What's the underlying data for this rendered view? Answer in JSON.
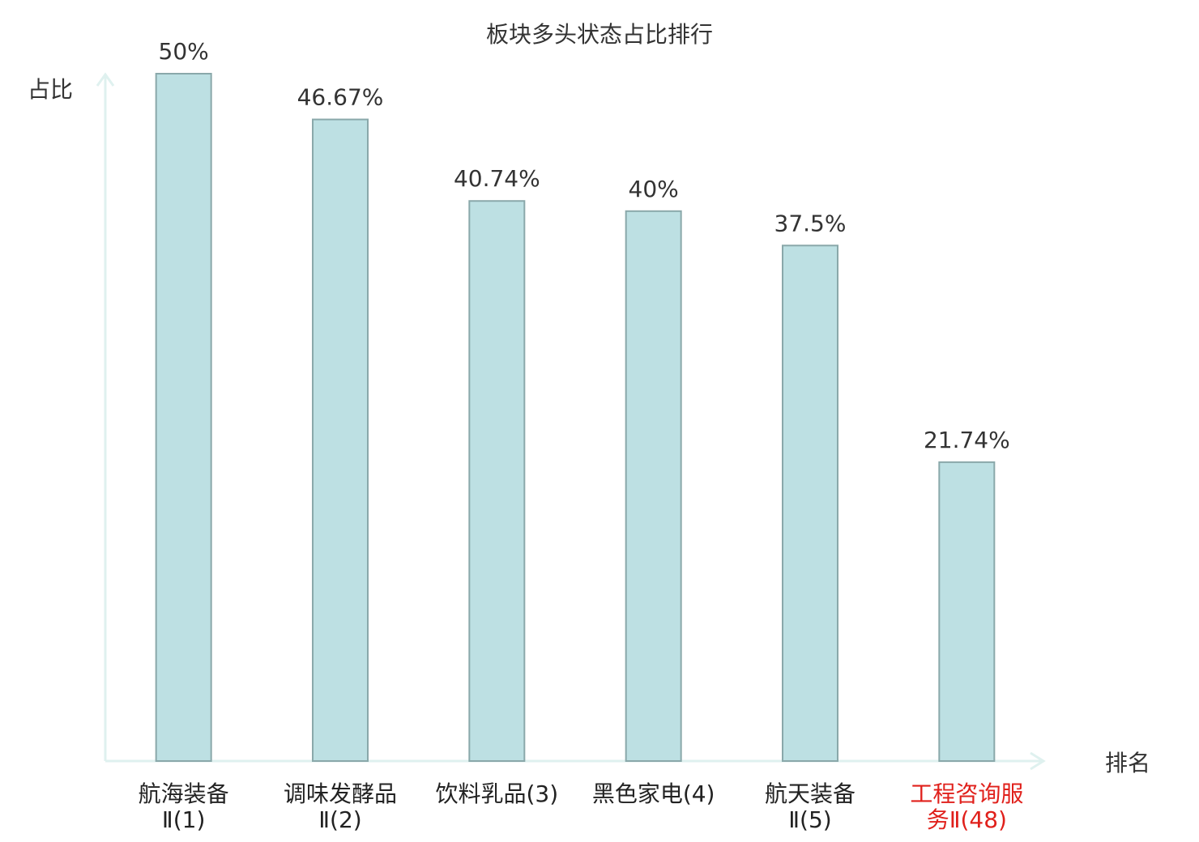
{
  "chart_data": {
    "type": "bar",
    "title": "板块多头状态占比排行",
    "y_label": "占比",
    "x_label": "排名",
    "categories": [
      "航海装备Ⅱ(1)",
      "调味发酵品Ⅱ(2)",
      "饮料乳品(3)",
      "黑色家电(4)",
      "航天装备Ⅱ(5)",
      "工程咨询服务Ⅱ(48)"
    ],
    "category_label_colors": [
      "#222222",
      "#222222",
      "#222222",
      "#222222",
      "#222222",
      "#e0201b"
    ],
    "values": [
      50,
      46.67,
      40.74,
      40,
      37.5,
      21.74
    ],
    "value_labels": [
      "50%",
      "46.67%",
      "40.74%",
      "40%",
      "37.5%",
      "21.74%"
    ],
    "color": "#bde0e3",
    "edge_color": "#8aa8aa",
    "ylim": [
      0,
      50
    ]
  }
}
